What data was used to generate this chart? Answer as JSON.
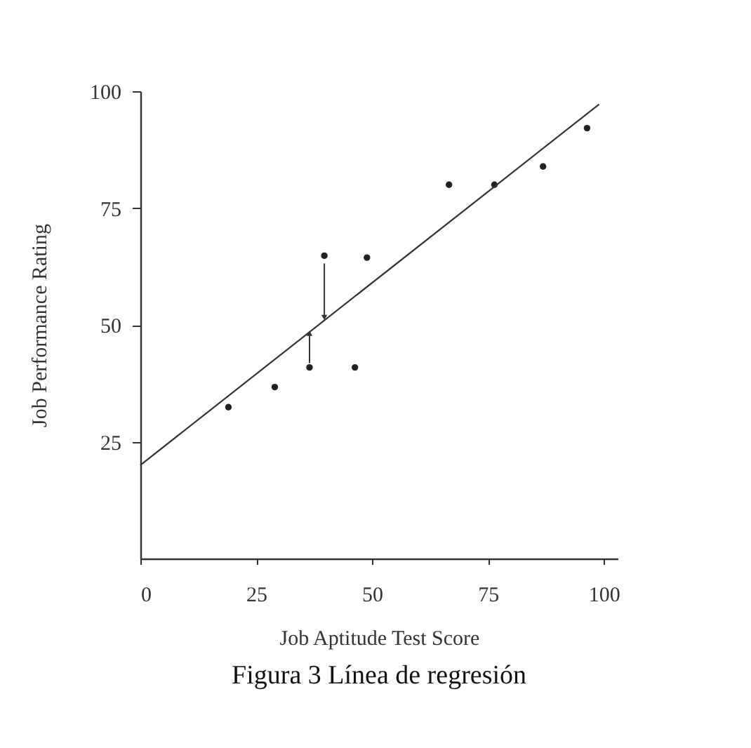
{
  "chart_data": {
    "type": "scatter",
    "xlabel": "Job Aptitude Test Score",
    "ylabel": "Job Performance Rating",
    "annotations": [
      "Figura 3 Línea de regresión"
    ],
    "xlim": [
      0,
      103
    ],
    "ylim": [
      0,
      100
    ],
    "xticks": [
      0,
      25,
      50,
      75,
      100
    ],
    "yticks": [
      25,
      50,
      75,
      100
    ],
    "grid": false,
    "marker": "circle",
    "series": [
      {
        "color": "#222222",
        "x": [
          19,
          29,
          36.5,
          39.7,
          46.3,
          48.9,
          66.6,
          76.4,
          86.9,
          96.4
        ],
        "values": [
          32.4,
          36.7,
          40.9,
          64.8,
          40.9,
          64.4,
          80,
          80,
          83.9,
          92.1
        ]
      },
      {
        "type": "line",
        "color": "#333333",
        "line_style": "solid",
        "marker": "none",
        "x": [
          0,
          99
        ],
        "values": [
          20,
          97.2
        ]
      }
    ]
  }
}
